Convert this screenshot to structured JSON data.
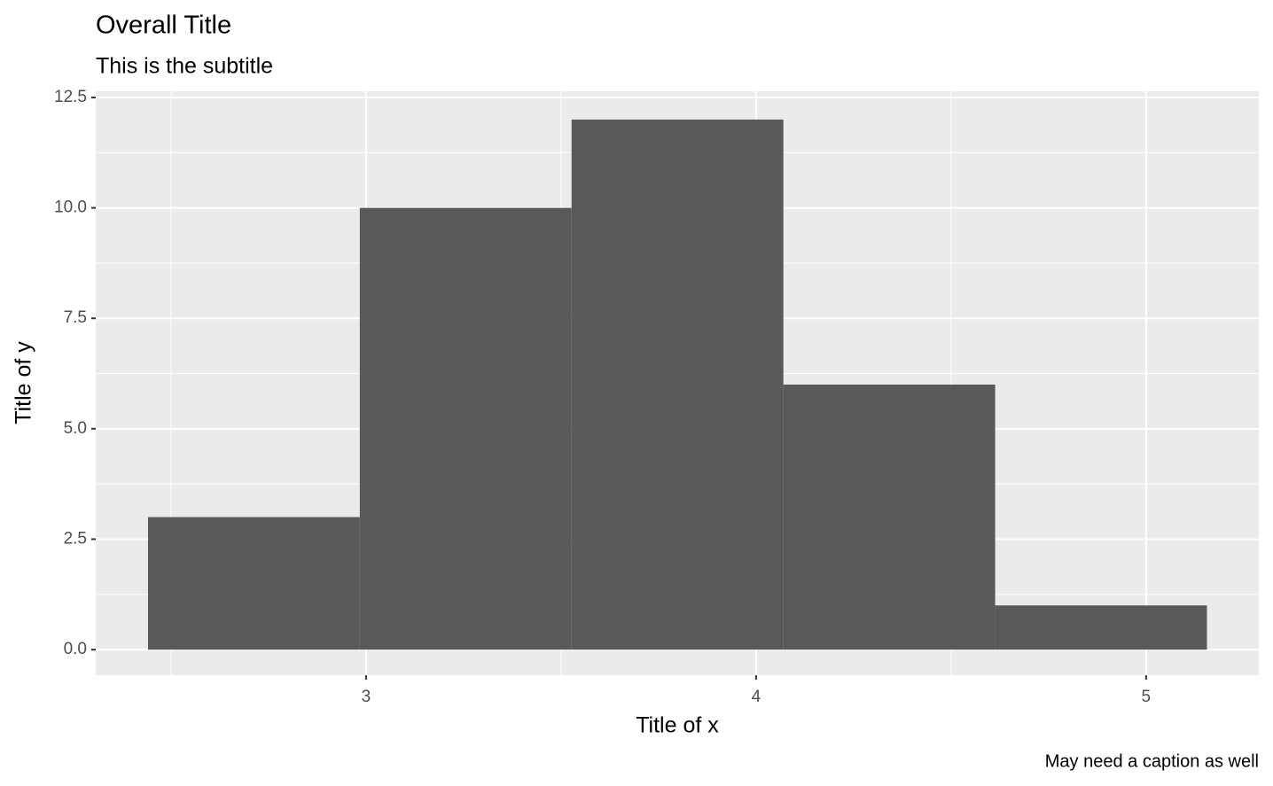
{
  "chart_data": {
    "type": "histogram",
    "title": "Overall Title",
    "subtitle": "This is the subtitle",
    "x_label": "Title of x",
    "y_label": "Title of y",
    "caption": "May need a caption as well",
    "bins": [
      2.441,
      2.984,
      3.527,
      4.07,
      4.613,
      5.156
    ],
    "values": [
      3,
      10,
      12,
      6,
      1
    ],
    "color": "#595959",
    "xlim": [
      2.307,
      5.289
    ],
    "ylim": [
      -0.58,
      12.64
    ],
    "xticks": [
      3,
      4,
      5
    ],
    "yticks": [
      {
        "value": 0,
        "label": "0.0"
      },
      2.5,
      {
        "value": 5,
        "label": "5.0"
      },
      7.5,
      {
        "value": 10,
        "label": "10.0"
      },
      12.5
    ],
    "grid": true
  }
}
